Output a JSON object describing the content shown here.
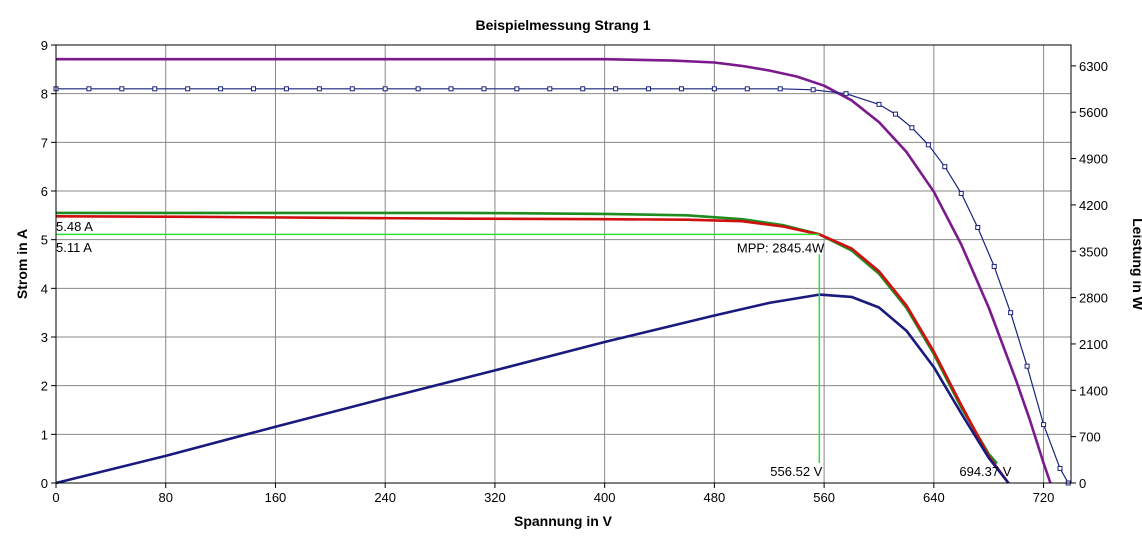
{
  "chart_data": {
    "type": "line",
    "title": "Beispielmessung Strang 1",
    "xlabel": "Spannung in V",
    "ylabel": "Strom in A",
    "y2label": "Leistung in W",
    "xlim": [
      0,
      740
    ],
    "ylim": [
      0,
      9
    ],
    "y2lim": [
      0,
      6615
    ],
    "x_ticks": [
      "0",
      "80",
      "160",
      "240",
      "320",
      "400",
      "480",
      "560",
      "640",
      "720"
    ],
    "y_ticks": [
      "0",
      "1",
      "2",
      "3",
      "4",
      "5",
      "6",
      "7",
      "8",
      "9"
    ],
    "y2_ticks": [
      "0",
      "700",
      "1400",
      "2100",
      "2800",
      "3500",
      "4200",
      "4900",
      "5600",
      "6300"
    ],
    "grid": true,
    "colors": {
      "purple": "#7b1a8c",
      "blue_marker": "#1a237e",
      "green": "#1e8c1e",
      "red": "#d01010",
      "navy": "#1a1a7e",
      "mpp_line": "#33dd33",
      "grid": "#888888"
    },
    "series": [
      {
        "axis": "y2",
        "color_key": "purple",
        "x": [
          0,
          100,
          200,
          300,
          400,
          450,
          480,
          500,
          520,
          540,
          560,
          580,
          600,
          620,
          640,
          660,
          680,
          700,
          710,
          720,
          725
        ],
        "y": [
          6400,
          6400,
          6400,
          6400,
          6400,
          6380,
          6350,
          6300,
          6230,
          6140,
          6000,
          5780,
          5450,
          5000,
          4400,
          3600,
          2650,
          1550,
          950,
          300,
          0
        ]
      },
      {
        "axis": "y",
        "color_key": "blue_marker",
        "markers": true,
        "x": [
          0,
          24,
          48,
          72,
          96,
          120,
          144,
          168,
          192,
          216,
          240,
          264,
          288,
          312,
          336,
          360,
          384,
          408,
          432,
          456,
          480,
          504,
          528,
          552,
          576,
          600,
          612,
          624,
          636,
          648,
          660,
          672,
          684,
          696,
          708,
          720,
          732,
          738
        ],
        "y": [
          8.1,
          8.1,
          8.1,
          8.1,
          8.1,
          8.1,
          8.1,
          8.1,
          8.1,
          8.1,
          8.1,
          8.1,
          8.1,
          8.1,
          8.1,
          8.1,
          8.1,
          8.1,
          8.1,
          8.1,
          8.1,
          8.1,
          8.1,
          8.08,
          8.0,
          7.78,
          7.58,
          7.3,
          6.95,
          6.5,
          5.95,
          5.25,
          4.45,
          3.5,
          2.4,
          1.2,
          0.3,
          0
        ]
      },
      {
        "axis": "y",
        "color_key": "green",
        "x": [
          0,
          100,
          200,
          300,
          400,
          460,
          500,
          530,
          556.52,
          580,
          600,
          620,
          640,
          660,
          680,
          686
        ],
        "y": [
          5.55,
          5.55,
          5.55,
          5.55,
          5.53,
          5.5,
          5.42,
          5.3,
          5.11,
          4.78,
          4.3,
          3.6,
          2.65,
          1.55,
          0.6,
          0.4
        ]
      },
      {
        "axis": "y",
        "color_key": "red",
        "x": [
          0,
          100,
          200,
          300,
          400,
          460,
          500,
          530,
          556.52,
          580,
          600,
          620,
          640,
          660,
          680,
          694.37
        ],
        "y": [
          5.48,
          5.47,
          5.45,
          5.43,
          5.42,
          5.41,
          5.38,
          5.27,
          5.11,
          4.82,
          4.35,
          3.65,
          2.7,
          1.6,
          0.55,
          0
        ]
      },
      {
        "axis": "y2",
        "color_key": "navy",
        "x": [
          0,
          80,
          160,
          240,
          320,
          400,
          480,
          520,
          556.52,
          580,
          600,
          620,
          640,
          660,
          680,
          694.37
        ],
        "y": [
          0,
          410,
          850,
          1280,
          1700,
          2130,
          2530,
          2720,
          2845.4,
          2810,
          2650,
          2300,
          1750,
          1050,
          380,
          0
        ]
      }
    ],
    "mpp": {
      "voltage": 556.52,
      "current": 5.11
    },
    "annotations": {
      "isc_label": "5.48 A",
      "impp_label": "5.11 A",
      "mpp_label": "MPP: 2845.4W",
      "vmpp_label": "556.52 V",
      "voc_label": "694.37 V"
    }
  }
}
